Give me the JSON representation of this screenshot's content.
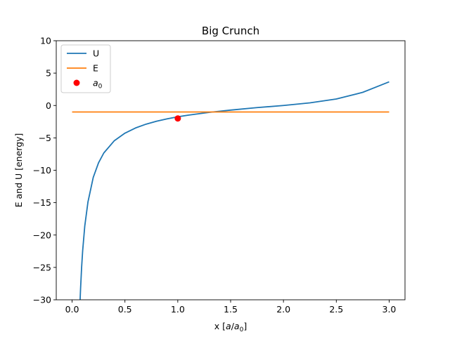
{
  "chart_data": {
    "type": "line",
    "title": "Big Crunch",
    "xlabel_main": "x [",
    "xlabel_var1": "a",
    "xlabel_slash": "/",
    "xlabel_var2": "a",
    "xlabel_sub": "0",
    "xlabel_end": "]",
    "ylabel": "E and U [energy]",
    "xlim": [
      -0.15,
      3.15
    ],
    "ylim": [
      -30,
      10
    ],
    "xticks": [
      0.0,
      0.5,
      1.0,
      1.5,
      2.0,
      2.5,
      3.0
    ],
    "xtick_labels": [
      "0.0",
      "0.5",
      "1.0",
      "1.5",
      "2.0",
      "2.5",
      "3.0"
    ],
    "yticks": [
      10,
      5,
      0,
      -5,
      -10,
      -15,
      -20,
      -25,
      -30
    ],
    "ytick_labels": [
      "10",
      "5",
      "0",
      "−5",
      "−10",
      "−15",
      "−20",
      "−25",
      "−30"
    ],
    "grid": false,
    "legend_position": "upper-left",
    "series": [
      {
        "name": "U",
        "kind": "line",
        "color": "#1f77b4",
        "x": [
          0.075,
          0.08,
          0.09,
          0.1,
          0.12,
          0.15,
          0.2,
          0.25,
          0.3,
          0.4,
          0.5,
          0.6,
          0.7,
          0.8,
          0.9,
          1.0,
          1.1,
          1.2,
          1.3,
          1.4,
          1.5,
          1.75,
          2.0,
          2.25,
          2.5,
          2.75,
          3.0
        ],
        "y": [
          -30.3,
          -28.3,
          -25.0,
          -22.4,
          -18.6,
          -14.9,
          -11.1,
          -8.85,
          -7.33,
          -5.43,
          -4.27,
          -3.47,
          -2.88,
          -2.43,
          -2.06,
          -1.75,
          -1.49,
          -1.27,
          -1.06,
          -0.88,
          -0.71,
          -0.33,
          0.0,
          0.41,
          1.0,
          2.03,
          3.65
        ]
      },
      {
        "name": "E",
        "kind": "line",
        "color": "#ff7f0e",
        "x": [
          0.0,
          3.0
        ],
        "y": [
          -1.0,
          -1.0
        ]
      },
      {
        "name_main": "a",
        "name_sub": "0",
        "kind": "point",
        "color": "#ff0000",
        "x": [
          1.0
        ],
        "y": [
          -2.0
        ]
      }
    ]
  }
}
